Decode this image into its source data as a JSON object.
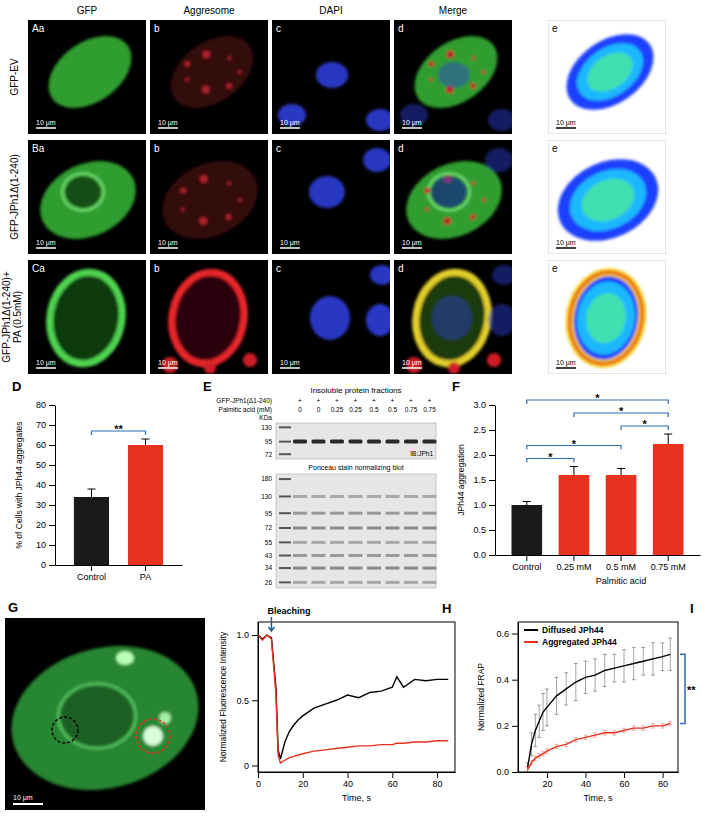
{
  "micrographs": {
    "columns": [
      "GFP",
      "Aggresome",
      "DAPI",
      "Merge"
    ],
    "rows": [
      {
        "label": "GFP-EV",
        "panels": [
          "Aa",
          "b",
          "c",
          "d",
          "e"
        ]
      },
      {
        "label": "GFP-JPh1Δ(1-240)",
        "panels": [
          "Ba",
          "b",
          "c",
          "d",
          "e"
        ]
      },
      {
        "label": "GFP-JPh1Δ(1-240)+ PA (0.5mM)",
        "panels": [
          "Ca",
          "b",
          "c",
          "d",
          "e"
        ]
      }
    ],
    "scale_bar": "10 μm"
  },
  "blot": {
    "panel_label": "E",
    "title": "Insoluble protein fractions",
    "rows": [
      {
        "label": "GFP-JPh1(Δ1-240)",
        "values": [
          "+",
          "+",
          "+",
          "+",
          "+",
          "+",
          "+",
          "+"
        ]
      },
      {
        "label": "Palmitic acid (mM)",
        "values": [
          0,
          0,
          0.25,
          0.25,
          0.5,
          0.5,
          0.75,
          0.75
        ]
      }
    ],
    "unit": "KDa",
    "top_blot": {
      "label": "IB:JPh1",
      "markers": [
        130,
        95,
        72
      ]
    },
    "bottom_blot": {
      "label": "Ponceau stain normalizing blot",
      "markers": [
        180,
        130,
        95,
        72,
        55,
        43,
        34,
        26
      ]
    }
  },
  "image_g": {
    "panel_label": "G",
    "scale_bar": "10 μm"
  },
  "chart_data": [
    {
      "panel_label": "D",
      "type": "bar",
      "categories": [
        "Control",
        "PA"
      ],
      "values": [
        34,
        60
      ],
      "errors": [
        4,
        3
      ],
      "colors": [
        "#1a1a1a",
        "#e8311f"
      ],
      "ylabel": "% of Cells with JPh44 aggregates",
      "ylim": [
        0,
        80
      ],
      "yticks": [
        0,
        10,
        20,
        30,
        40,
        50,
        60,
        70,
        80
      ],
      "annotations": [
        {
          "pair": [
            0,
            1
          ],
          "text": "**"
        }
      ]
    },
    {
      "panel_label": "F",
      "type": "bar",
      "categories": [
        "Control",
        "0.25 mM",
        "0.5 mM",
        "0.75 mM"
      ],
      "values": [
        1.0,
        1.6,
        1.6,
        2.22
      ],
      "errors": [
        0.07,
        0.17,
        0.13,
        0.2
      ],
      "colors": [
        "#1a1a1a",
        "#e8311f",
        "#e8311f",
        "#e8311f"
      ],
      "ylabel": "JPh44 aggregation",
      "xlabel": "Palmitic acid",
      "ylim": [
        0,
        3
      ],
      "yticks": [
        {
          "value": 0,
          "label": "0.0"
        },
        0.5,
        {
          "value": 1,
          "label": "1.0"
        },
        1.5,
        {
          "value": 2,
          "label": "2.0"
        },
        2.5,
        {
          "value": 3,
          "label": "3.0"
        }
      ],
      "annotations": [
        {
          "pair": [
            0,
            1
          ],
          "text": "*"
        },
        {
          "pair": [
            2,
            3
          ],
          "text": "*"
        },
        {
          "pair": [
            0,
            2
          ],
          "text": "*"
        },
        {
          "pair": [
            1,
            3
          ],
          "text": "*"
        },
        {
          "pair": [
            0,
            3
          ],
          "text": "*"
        }
      ]
    },
    {
      "panel_label": "H",
      "type": "line",
      "x": [
        0,
        2,
        4,
        6,
        8,
        9,
        10,
        12,
        14,
        16,
        18,
        20,
        25,
        30,
        35,
        40,
        45,
        50,
        55,
        60,
        62,
        65,
        70,
        75,
        80,
        85
      ],
      "series": [
        {
          "color": "#000000",
          "values": [
            1.0,
            0.97,
            1.0,
            0.98,
            0.6,
            0.12,
            0.05,
            0.18,
            0.26,
            0.31,
            0.35,
            0.38,
            0.44,
            0.47,
            0.5,
            0.54,
            0.52,
            0.56,
            0.57,
            0.6,
            0.68,
            0.6,
            0.66,
            0.65,
            0.66,
            0.66
          ]
        },
        {
          "color": "#e8311f",
          "values": [
            1.0,
            0.96,
            1.0,
            0.97,
            0.55,
            0.08,
            0.02,
            0.04,
            0.06,
            0.07,
            0.08,
            0.09,
            0.11,
            0.12,
            0.13,
            0.14,
            0.15,
            0.15,
            0.16,
            0.16,
            0.17,
            0.17,
            0.18,
            0.18,
            0.19,
            0.19
          ]
        }
      ],
      "xlabel": "Time, s",
      "ylabel": "Normalized Fluorescence Intensity",
      "xlim": [
        0,
        88
      ],
      "xticks": [
        0,
        20,
        40,
        60,
        80
      ],
      "ylim": [
        -0.05,
        1.1
      ],
      "yticks": [
        0,
        0.5,
        {
          "value": 1,
          "label": "1.0"
        }
      ],
      "annotations": [
        {
          "text": "Bleaching",
          "x": 6
        }
      ]
    },
    {
      "panel_label": "I",
      "type": "line",
      "x": [
        10,
        12,
        14,
        16,
        18,
        20,
        25,
        30,
        35,
        40,
        45,
        50,
        55,
        60,
        65,
        70,
        75,
        80,
        84
      ],
      "series": [
        {
          "name": "Diffused JPh44",
          "color": "#000000",
          "values": [
            0.02,
            0.12,
            0.18,
            0.22,
            0.26,
            0.28,
            0.33,
            0.36,
            0.39,
            0.41,
            0.42,
            0.44,
            0.45,
            0.46,
            0.47,
            0.48,
            0.49,
            0.5,
            0.51
          ],
          "errors": [
            0.02,
            0.05,
            0.07,
            0.07,
            0.08,
            0.08,
            0.08,
            0.07,
            0.08,
            0.07,
            0.07,
            0.07,
            0.06,
            0.07,
            0.07,
            0.06,
            0.07,
            0.06,
            0.07
          ]
        },
        {
          "name": "Aggregated JPh44",
          "color": "#e8311f",
          "values": [
            0.01,
            0.04,
            0.06,
            0.07,
            0.08,
            0.09,
            0.11,
            0.12,
            0.14,
            0.15,
            0.16,
            0.17,
            0.17,
            0.18,
            0.19,
            0.19,
            0.2,
            0.2,
            0.21
          ],
          "errors": [
            0.01,
            0.01,
            0.01,
            0.01,
            0.01,
            0.01,
            0.01,
            0.01,
            0.01,
            0.01,
            0.01,
            0.01,
            0.01,
            0.01,
            0.01,
            0.01,
            0.01,
            0.01,
            0.01
          ]
        }
      ],
      "xlabel": "Time, s",
      "ylabel": "Normalized FRAP",
      "xlim": [
        5,
        88
      ],
      "xticks": [
        20,
        40,
        60,
        80
      ],
      "ylim": [
        0,
        0.65
      ],
      "yticks": [
        {
          "value": 0,
          "label": "0.0"
        },
        0.2,
        0.4,
        0.6
      ],
      "legend": "top-left",
      "annotations": [
        {
          "text": "**"
        }
      ]
    }
  ]
}
